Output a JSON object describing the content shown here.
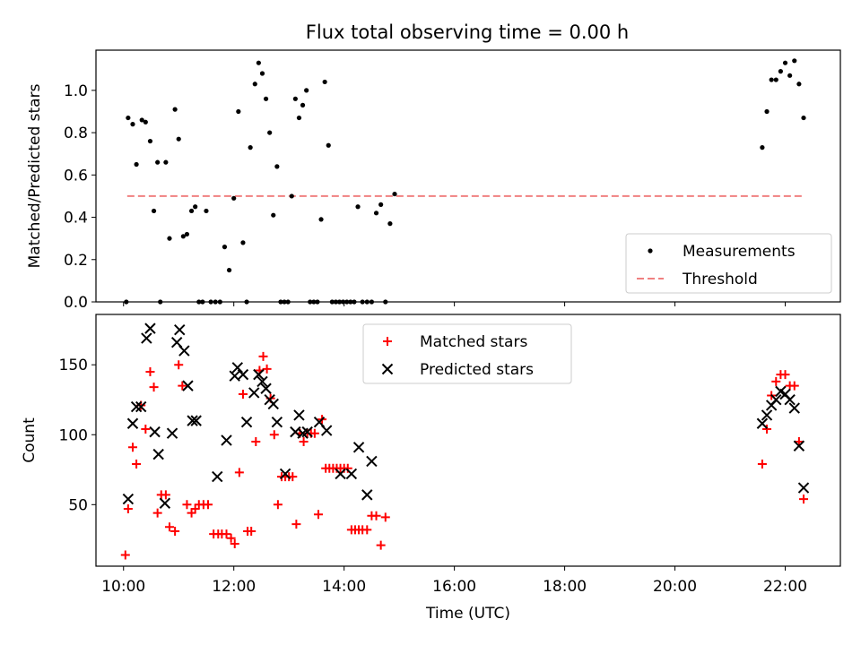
{
  "title": "Flux total observing time = 0.00 h",
  "colors": {
    "measurement": "#000000",
    "threshold": "#f08080",
    "matched": "#ff0000",
    "predicted": "#000000"
  },
  "chart_data": [
    {
      "type": "scatter",
      "ylabel": "Matched/Predicted stars",
      "ylim": [
        0,
        1.19
      ],
      "yticks": [
        "0.0",
        "0.2",
        "0.4",
        "0.6",
        "0.8",
        "1.0"
      ],
      "xlim": [
        "09:30",
        "23:00"
      ],
      "grid": false,
      "legend_position": "bottom-right",
      "legend": [
        "Measurements",
        "Threshold"
      ],
      "threshold": {
        "y": 0.5,
        "x_range": [
          "10:04",
          "22:20"
        ]
      },
      "series": [
        {
          "name": "Measurements",
          "points": [
            [
              "10:03",
              0.0
            ],
            [
              "10:05",
              0.87
            ],
            [
              "10:10",
              0.84
            ],
            [
              "10:14",
              0.65
            ],
            [
              "10:20",
              0.86
            ],
            [
              "10:24",
              0.85
            ],
            [
              "10:29",
              0.76
            ],
            [
              "10:33",
              0.43
            ],
            [
              "10:37",
              0.66
            ],
            [
              "10:40",
              0.0
            ],
            [
              "10:46",
              0.66
            ],
            [
              "10:50",
              0.3
            ],
            [
              "10:56",
              0.91
            ],
            [
              "11:00",
              0.77
            ],
            [
              "11:05",
              0.31
            ],
            [
              "11:09",
              0.32
            ],
            [
              "11:14",
              0.43
            ],
            [
              "11:18",
              0.45
            ],
            [
              "11:22",
              0.0
            ],
            [
              "11:26",
              0.0
            ],
            [
              "11:30",
              0.43
            ],
            [
              "11:35",
              0.0
            ],
            [
              "11:40",
              0.0
            ],
            [
              "11:45",
              0.0
            ],
            [
              "11:50",
              0.26
            ],
            [
              "11:55",
              0.15
            ],
            [
              "12:00",
              0.49
            ],
            [
              "12:05",
              0.9
            ],
            [
              "12:10",
              0.28
            ],
            [
              "12:14",
              0.0
            ],
            [
              "12:18",
              0.73
            ],
            [
              "12:23",
              1.03
            ],
            [
              "12:27",
              1.13
            ],
            [
              "12:31",
              1.08
            ],
            [
              "12:35",
              0.96
            ],
            [
              "12:39",
              0.8
            ],
            [
              "12:43",
              0.41
            ],
            [
              "12:47",
              0.64
            ],
            [
              "12:51",
              0.0
            ],
            [
              "12:55",
              0.0
            ],
            [
              "12:59",
              0.0
            ],
            [
              "13:03",
              0.5
            ],
            [
              "13:07",
              0.96
            ],
            [
              "13:11",
              0.87
            ],
            [
              "13:15",
              0.93
            ],
            [
              "13:19",
              1.0
            ],
            [
              "13:23",
              0.0
            ],
            [
              "13:27",
              0.0
            ],
            [
              "13:31",
              0.0
            ],
            [
              "13:35",
              0.39
            ],
            [
              "13:39",
              1.04
            ],
            [
              "13:43",
              0.74
            ],
            [
              "13:47",
              0.0
            ],
            [
              "13:51",
              0.0
            ],
            [
              "13:55",
              0.0
            ],
            [
              "13:59",
              0.0
            ],
            [
              "14:03",
              0.0
            ],
            [
              "14:07",
              0.0
            ],
            [
              "14:11",
              0.0
            ],
            [
              "14:15",
              0.45
            ],
            [
              "14:20",
              0.0
            ],
            [
              "14:25",
              0.0
            ],
            [
              "14:30",
              0.0
            ],
            [
              "14:35",
              0.42
            ],
            [
              "14:40",
              0.46
            ],
            [
              "14:45",
              0.0
            ],
            [
              "14:50",
              0.37
            ],
            [
              "14:55",
              0.51
            ],
            [
              "21:35",
              0.73
            ],
            [
              "21:40",
              0.9
            ],
            [
              "21:45",
              1.05
            ],
            [
              "21:50",
              1.05
            ],
            [
              "21:55",
              1.09
            ],
            [
              "22:00",
              1.13
            ],
            [
              "22:05",
              1.07
            ],
            [
              "22:10",
              1.14
            ],
            [
              "22:15",
              1.03
            ],
            [
              "22:20",
              0.87
            ]
          ]
        },
        {
          "name": "Threshold"
        }
      ]
    },
    {
      "type": "scatter",
      "xlabel": "Time (UTC)",
      "ylabel": "Count",
      "ylim": [
        6,
        186
      ],
      "yticks": [
        "50",
        "100",
        "150"
      ],
      "xlim": [
        "09:30",
        "23:00"
      ],
      "xticks": [
        "10:00",
        "12:00",
        "14:00",
        "16:00",
        "18:00",
        "20:00",
        "22:00"
      ],
      "grid": false,
      "legend_position": "top-center",
      "legend": [
        "Matched stars",
        "Predicted stars"
      ],
      "series": [
        {
          "name": "Matched stars",
          "points": [
            [
              "10:02",
              14
            ],
            [
              "10:05",
              47
            ],
            [
              "10:10",
              91
            ],
            [
              "10:14",
              79
            ],
            [
              "10:19",
              121
            ],
            [
              "10:24",
              104
            ],
            [
              "10:29",
              145
            ],
            [
              "10:33",
              134
            ],
            [
              "10:37",
              44
            ],
            [
              "10:41",
              57
            ],
            [
              "10:46",
              57
            ],
            [
              "10:50",
              34
            ],
            [
              "10:56",
              31
            ],
            [
              "11:00",
              150
            ],
            [
              "11:04",
              135
            ],
            [
              "11:09",
              50
            ],
            [
              "11:14",
              44
            ],
            [
              "11:18",
              47
            ],
            [
              "11:22",
              50
            ],
            [
              "11:27",
              50
            ],
            [
              "11:32",
              50
            ],
            [
              "11:38",
              29
            ],
            [
              "11:43",
              29
            ],
            [
              "11:47",
              29
            ],
            [
              "11:52",
              29
            ],
            [
              "11:57",
              26
            ],
            [
              "12:01",
              22
            ],
            [
              "12:06",
              73
            ],
            [
              "12:10",
              129
            ],
            [
              "12:15",
              31
            ],
            [
              "12:19",
              31
            ],
            [
              "12:24",
              95
            ],
            [
              "12:28",
              146
            ],
            [
              "12:32",
              156
            ],
            [
              "12:36",
              147
            ],
            [
              "12:40",
              126
            ],
            [
              "12:44",
              100
            ],
            [
              "12:48",
              50
            ],
            [
              "12:52",
              70
            ],
            [
              "12:56",
              70
            ],
            [
              "13:00",
              70
            ],
            [
              "13:04",
              70
            ],
            [
              "13:08",
              36
            ],
            [
              "13:12",
              101
            ],
            [
              "13:16",
              95
            ],
            [
              "13:20",
              101
            ],
            [
              "13:24",
              101
            ],
            [
              "13:28",
              101
            ],
            [
              "13:32",
              43
            ],
            [
              "13:36",
              111
            ],
            [
              "13:40",
              76
            ],
            [
              "13:44",
              76
            ],
            [
              "13:48",
              76
            ],
            [
              "13:52",
              76
            ],
            [
              "13:56",
              76
            ],
            [
              "14:00",
              76
            ],
            [
              "14:04",
              76
            ],
            [
              "14:08",
              32
            ],
            [
              "14:12",
              32
            ],
            [
              "14:16",
              32
            ],
            [
              "14:20",
              32
            ],
            [
              "14:25",
              32
            ],
            [
              "14:30",
              42
            ],
            [
              "14:35",
              42
            ],
            [
              "14:40",
              21
            ],
            [
              "14:45",
              41
            ],
            [
              "21:35",
              79
            ],
            [
              "21:40",
              104
            ],
            [
              "21:45",
              128
            ],
            [
              "21:50",
              138
            ],
            [
              "21:55",
              143
            ],
            [
              "22:00",
              143
            ],
            [
              "22:05",
              135
            ],
            [
              "22:10",
              135
            ],
            [
              "22:15",
              95
            ],
            [
              "22:20",
              54
            ]
          ]
        },
        {
          "name": "Predicted stars",
          "points": [
            [
              "10:05",
              54
            ],
            [
              "10:10",
              108
            ],
            [
              "10:14",
              120
            ],
            [
              "10:19",
              120
            ],
            [
              "10:25",
              169
            ],
            [
              "10:29",
              176
            ],
            [
              "10:34",
              102
            ],
            [
              "10:38",
              86
            ],
            [
              "10:45",
              51
            ],
            [
              "10:53",
              101
            ],
            [
              "10:58",
              166
            ],
            [
              "11:01",
              175
            ],
            [
              "11:06",
              160
            ],
            [
              "11:10",
              135
            ],
            [
              "11:15",
              110
            ],
            [
              "11:19",
              110
            ],
            [
              "11:42",
              70
            ],
            [
              "11:52",
              96
            ],
            [
              "12:01",
              142
            ],
            [
              "12:04",
              148
            ],
            [
              "12:10",
              143
            ],
            [
              "12:14",
              109
            ],
            [
              "12:22",
              130
            ],
            [
              "12:27",
              143
            ],
            [
              "12:31",
              138
            ],
            [
              "12:35",
              133
            ],
            [
              "12:39",
              125
            ],
            [
              "12:43",
              122
            ],
            [
              "12:47",
              109
            ],
            [
              "12:56",
              72
            ],
            [
              "13:07",
              102
            ],
            [
              "13:11",
              114
            ],
            [
              "13:15",
              101
            ],
            [
              "13:20",
              102
            ],
            [
              "13:33",
              109
            ],
            [
              "13:41",
              103
            ],
            [
              "13:56",
              72
            ],
            [
              "14:08",
              72
            ],
            [
              "14:16",
              91
            ],
            [
              "14:25",
              57
            ],
            [
              "14:30",
              81
            ],
            [
              "21:35",
              108
            ],
            [
              "21:40",
              114
            ],
            [
              "21:45",
              121
            ],
            [
              "21:50",
              125
            ],
            [
              "21:55",
              131
            ],
            [
              "22:00",
              129
            ],
            [
              "22:05",
              125
            ],
            [
              "22:10",
              119
            ],
            [
              "22:15",
              92
            ],
            [
              "22:20",
              62
            ]
          ]
        }
      ]
    }
  ]
}
